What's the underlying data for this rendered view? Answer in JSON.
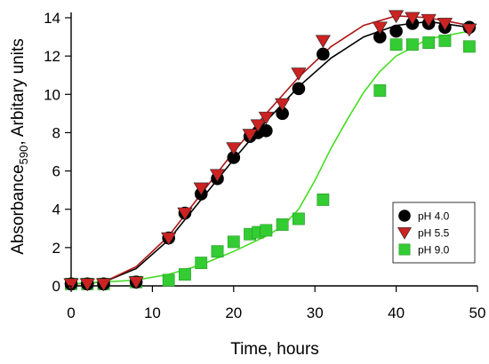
{
  "chart_data": {
    "type": "scatter",
    "xlabel": "Time, hours",
    "ylabel_main": "Absorbance",
    "ylabel_sub": "590",
    "ylabel_tail": ", Arbitary units",
    "xlim": [
      0,
      50
    ],
    "ylim": [
      0,
      14
    ],
    "x_ticks": [
      0,
      10,
      20,
      30,
      40,
      50
    ],
    "y_ticks": [
      0,
      2,
      4,
      6,
      8,
      10,
      12,
      14
    ],
    "grid": false,
    "legend_position": "bottom-right",
    "series": [
      {
        "name": "pH 4.0",
        "marker": "circle",
        "color": "#000000",
        "fit_color": "#000000",
        "points": [
          [
            0,
            0.1
          ],
          [
            2,
            0.1
          ],
          [
            4,
            0.1
          ],
          [
            8,
            0.2
          ],
          [
            12,
            2.5
          ],
          [
            14,
            3.8
          ],
          [
            16,
            4.8
          ],
          [
            18,
            5.6
          ],
          [
            20,
            6.7
          ],
          [
            22,
            7.8
          ],
          [
            23,
            8.0
          ],
          [
            24,
            8.1
          ],
          [
            26,
            9.0
          ],
          [
            28,
            10.3
          ],
          [
            31,
            12.1
          ],
          [
            38,
            13.0
          ],
          [
            40,
            13.3
          ],
          [
            42,
            13.7
          ],
          [
            44,
            13.7
          ],
          [
            46,
            13.5
          ],
          [
            49,
            13.5
          ]
        ],
        "fit": [
          [
            0,
            0.1
          ],
          [
            4,
            0.2
          ],
          [
            8,
            0.9
          ],
          [
            12,
            2.4
          ],
          [
            16,
            4.5
          ],
          [
            20,
            6.6
          ],
          [
            24,
            8.6
          ],
          [
            28,
            10.4
          ],
          [
            32,
            11.9
          ],
          [
            36,
            13.0
          ],
          [
            40,
            13.6
          ],
          [
            44,
            13.8
          ],
          [
            49,
            13.5
          ]
        ]
      },
      {
        "name": "pH 5.5",
        "marker": "triangle-down",
        "color": "#cc2222",
        "fit_color": "#b01515",
        "points": [
          [
            0,
            0.1
          ],
          [
            2,
            0.1
          ],
          [
            4,
            0.1
          ],
          [
            8,
            0.2
          ],
          [
            12,
            2.5
          ],
          [
            14,
            3.8
          ],
          [
            16,
            5.1
          ],
          [
            18,
            5.8
          ],
          [
            20,
            7.2
          ],
          [
            22,
            7.9
          ],
          [
            23,
            8.4
          ],
          [
            24,
            8.8
          ],
          [
            26,
            9.5
          ],
          [
            28,
            11.1
          ],
          [
            31,
            12.8
          ],
          [
            38,
            13.5
          ],
          [
            40,
            14.1
          ],
          [
            42,
            14.0
          ],
          [
            44,
            13.9
          ],
          [
            46,
            13.7
          ],
          [
            49,
            13.4
          ]
        ],
        "fit": [
          [
            0,
            0.1
          ],
          [
            4,
            0.2
          ],
          [
            8,
            1.0
          ],
          [
            12,
            2.6
          ],
          [
            16,
            4.8
          ],
          [
            20,
            7.0
          ],
          [
            24,
            9.0
          ],
          [
            28,
            10.9
          ],
          [
            32,
            12.5
          ],
          [
            36,
            13.6
          ],
          [
            40,
            14.1
          ],
          [
            44,
            14.0
          ],
          [
            49,
            13.6
          ]
        ]
      },
      {
        "name": "pH 9.0",
        "marker": "square",
        "color": "#33cc33",
        "fit_color": "#44dd22",
        "points": [
          [
            0,
            0.1
          ],
          [
            2,
            0.1
          ],
          [
            4,
            0.1
          ],
          [
            8,
            0.2
          ],
          [
            12,
            0.3
          ],
          [
            14,
            0.6
          ],
          [
            16,
            1.2
          ],
          [
            18,
            1.8
          ],
          [
            20,
            2.3
          ],
          [
            22,
            2.7
          ],
          [
            23,
            2.8
          ],
          [
            24,
            2.9
          ],
          [
            26,
            3.2
          ],
          [
            28,
            3.5
          ],
          [
            31,
            4.5
          ],
          [
            38,
            10.2
          ],
          [
            40,
            12.6
          ],
          [
            42,
            12.6
          ],
          [
            44,
            12.7
          ],
          [
            46,
            12.8
          ],
          [
            49,
            12.5
          ]
        ],
        "fit": [
          [
            0,
            0.1
          ],
          [
            8,
            0.3
          ],
          [
            12,
            0.6
          ],
          [
            16,
            1.1
          ],
          [
            20,
            1.8
          ],
          [
            24,
            2.6
          ],
          [
            26,
            3.1
          ],
          [
            28,
            4.0
          ],
          [
            30,
            5.5
          ],
          [
            32,
            7.2
          ],
          [
            34,
            8.7
          ],
          [
            36,
            10.1
          ],
          [
            38,
            11.2
          ],
          [
            40,
            12.0
          ],
          [
            44,
            12.9
          ],
          [
            49,
            13.3
          ]
        ]
      }
    ]
  }
}
